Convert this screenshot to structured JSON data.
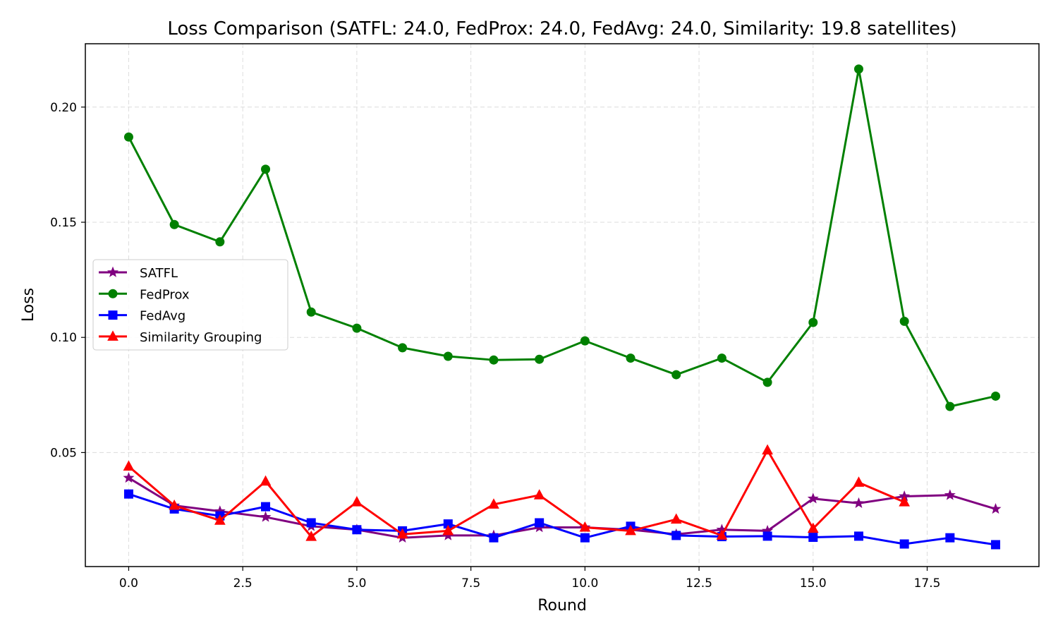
{
  "chart_data": {
    "type": "line",
    "title": "Loss Comparison (SATFL: 24.0, FedProx: 24.0, FedAvg: 24.0, Similarity: 19.8 satellites)",
    "xlabel": "Round",
    "ylabel": "Loss",
    "xlim": [
      -0.95,
      19.95
    ],
    "ylim": [
      0.0005,
      0.2275
    ],
    "xticks": [
      0,
      2.5,
      5,
      7.5,
      10,
      12.5,
      15,
      17.5
    ],
    "xtick_labels": [
      "0.0",
      "2.5",
      "5.0",
      "7.5",
      "10.0",
      "12.5",
      "15.0",
      "17.5"
    ],
    "yticks": [
      0.05,
      0.1,
      0.15,
      0.2
    ],
    "ytick_labels": [
      "0.05",
      "0.10",
      "0.15",
      "0.20"
    ],
    "grid": true,
    "legend_position": "center-left",
    "series": [
      {
        "name": "SATFL",
        "color": "#800080",
        "marker": "star",
        "x": [
          0,
          1,
          2,
          3,
          4,
          5,
          6,
          7,
          8,
          9,
          10,
          11,
          12,
          13,
          14,
          15,
          16,
          17,
          18,
          19
        ],
        "values": [
          0.039,
          0.027,
          0.0245,
          0.022,
          0.018,
          0.0165,
          0.013,
          0.014,
          0.014,
          0.0175,
          0.0175,
          0.0165,
          0.0145,
          0.0165,
          0.016,
          0.03,
          0.028,
          0.031,
          0.0315,
          0.0255
        ]
      },
      {
        "name": "FedProx",
        "color": "#008000",
        "marker": "circle",
        "x": [
          0,
          1,
          2,
          3,
          4,
          5,
          6,
          7,
          8,
          9,
          10,
          11,
          12,
          13,
          14,
          15,
          16,
          17,
          18,
          19
        ],
        "values": [
          0.187,
          0.149,
          0.1415,
          0.173,
          0.111,
          0.104,
          0.0955,
          0.0918,
          0.0902,
          0.0905,
          0.0985,
          0.091,
          0.0838,
          0.091,
          0.0805,
          0.1065,
          0.2165,
          0.107,
          0.07,
          0.0745
        ]
      },
      {
        "name": "FedAvg",
        "color": "#0000ff",
        "marker": "square",
        "x": [
          0,
          1,
          2,
          3,
          4,
          5,
          6,
          7,
          8,
          9,
          10,
          11,
          12,
          13,
          14,
          15,
          16,
          17,
          18,
          19
        ],
        "values": [
          0.032,
          0.0255,
          0.0225,
          0.0265,
          0.0195,
          0.0165,
          0.016,
          0.019,
          0.013,
          0.0195,
          0.013,
          0.018,
          0.014,
          0.0135,
          0.0137,
          0.0132,
          0.0137,
          0.0103,
          0.013,
          0.01
        ]
      },
      {
        "name": "Similarity Grouping",
        "color": "#ff0000",
        "marker": "triangle",
        "x": [
          0,
          1,
          2,
          3,
          4,
          5,
          6,
          7,
          8,
          9,
          10,
          11,
          12,
          13,
          14,
          15,
          16,
          17
        ],
        "values": [
          0.044,
          0.027,
          0.0205,
          0.0375,
          0.0135,
          0.0285,
          0.0145,
          0.016,
          0.0275,
          0.0315,
          0.0175,
          0.016,
          0.021,
          0.014,
          0.051,
          0.017,
          0.037,
          0.0285
        ]
      }
    ]
  }
}
